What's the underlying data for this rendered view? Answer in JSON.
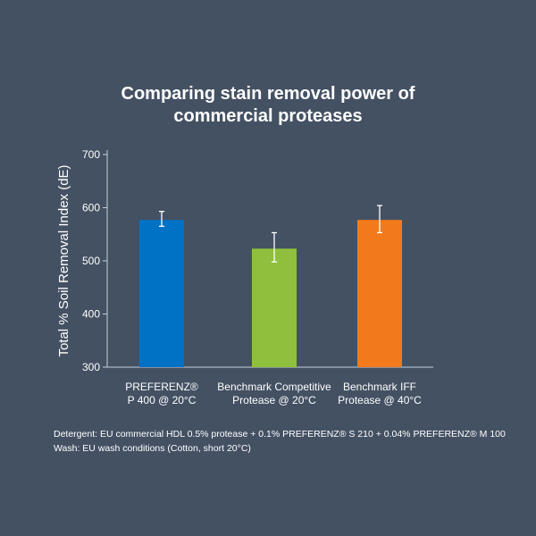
{
  "title_lines": [
    "Comparing stain removal power of",
    "commercial proteases"
  ],
  "colors": {
    "background": "#445163",
    "axis": "#c8d0da",
    "text": "#ffffff"
  },
  "notes": {
    "line1": "Detergent:  EU commercial HDL  0.5%  protease + 0.1% PREFERENZ® S 210 + 0.04% PREFERENZ® M 100",
    "line2": "Wash: EU wash conditions (Cotton, short 20°C)"
  },
  "chart_data": {
    "type": "bar",
    "categories": [
      [
        "PREFERENZ®",
        "P 400 @ 20°C"
      ],
      [
        "Benchmark Competitive",
        "Protease @ 20°C"
      ],
      [
        "Benchmark IFF",
        "Protease @ 40°C"
      ]
    ],
    "values": [
      577,
      523,
      577
    ],
    "error": [
      [
        565,
        593
      ],
      [
        498,
        553
      ],
      [
        553,
        604
      ]
    ],
    "bar_colors": [
      "#0072c6",
      "#8fc03d",
      "#f27a1a"
    ],
    "ylabel": "Total % Soil Removal Index (dE)",
    "xlabel": "",
    "ylim": [
      300,
      700
    ],
    "yticks": [
      300,
      400,
      500,
      600,
      700
    ],
    "grid": false
  }
}
